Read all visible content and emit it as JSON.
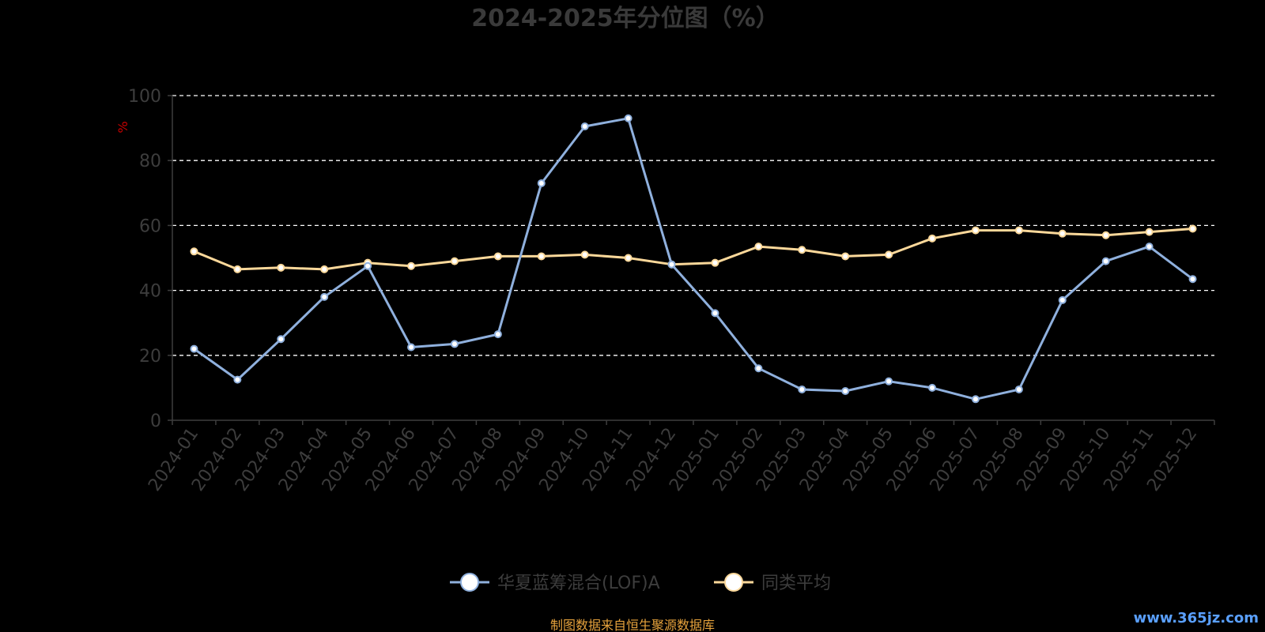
{
  "colors": {
    "background": "#000000",
    "series_1": "#8fb0dd",
    "series_2": "#fbd89a",
    "grid": "#ffffff",
    "axis": "#3d3d3d",
    "unit_label": "#cc0000",
    "source_note": "#e6a23c",
    "watermark": "#5aa0ff"
  },
  "source_note": "制图数据来自恒生聚源数据库",
  "watermark": "www.365jz.com",
  "chart_data": {
    "type": "line",
    "title": "2024-2025年分位图（%）",
    "ylabel": "%",
    "xlabel": "",
    "ylim": [
      0,
      100
    ],
    "yticks": [
      0,
      20,
      40,
      60,
      80,
      100
    ],
    "grid": true,
    "grid_style": "dashed",
    "legend_position": "bottom-center",
    "categories": [
      "2024-01",
      "2024-02",
      "2024-03",
      "2024-04",
      "2024-05",
      "2024-06",
      "2024-07",
      "2024-08",
      "2024-09",
      "2024-10",
      "2024-11",
      "2024-12",
      "2025-01",
      "2025-02",
      "2025-03",
      "2025-04",
      "2025-05",
      "2025-06",
      "2025-07",
      "2025-08",
      "2025-09",
      "2025-10",
      "2025-11",
      "2025-12"
    ],
    "series": [
      {
        "name": "华夏蓝筹混合(LOF)A",
        "color": "#8fb0dd",
        "values": [
          22,
          12.5,
          25,
          38,
          47.5,
          22.5,
          23.5,
          26.5,
          73,
          90.5,
          93,
          48,
          33,
          16,
          9.5,
          9,
          12,
          10,
          6.5,
          9.5,
          37,
          49,
          53.5,
          43.5
        ]
      },
      {
        "name": "同类平均",
        "color": "#fbd89a",
        "values": [
          52,
          46.5,
          47,
          46.5,
          48.5,
          47.5,
          49,
          50.5,
          50.5,
          51,
          50,
          48,
          48.5,
          53.5,
          52.5,
          50.5,
          51,
          56,
          58.5,
          58.5,
          57.5,
          57,
          58,
          59
        ]
      }
    ]
  }
}
